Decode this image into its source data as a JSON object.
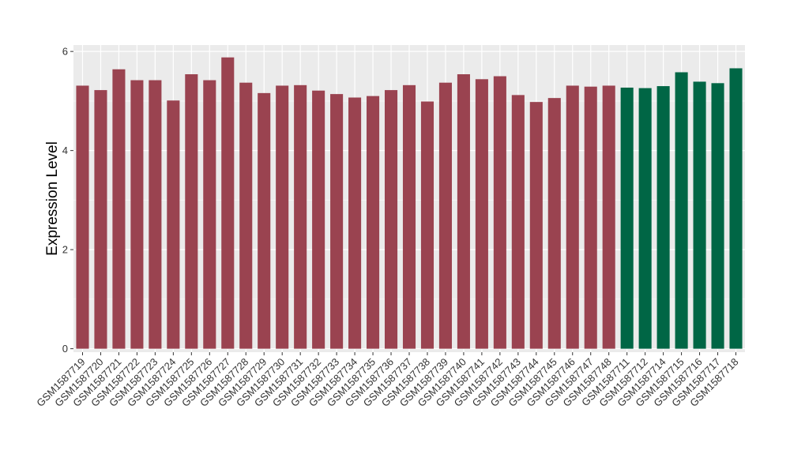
{
  "chart_data": {
    "type": "bar",
    "title": "",
    "xlabel": "",
    "ylabel": "Expression Level",
    "ylim": [
      -0.07,
      6.13
    ],
    "yticks": [
      0,
      2,
      4,
      6
    ],
    "grid": true,
    "legend": "none",
    "colors": {
      "group_a": "#9a4350",
      "group_b": "#006645",
      "panel_bg": "#ebebeb",
      "grid_major": "#ffffff"
    },
    "categories": [
      "GSM1587719",
      "GSM1587720",
      "GSM1587721",
      "GSM1587722",
      "GSM1587723",
      "GSM1587724",
      "GSM1587725",
      "GSM1587726",
      "GSM1587727",
      "GSM1587728",
      "GSM1587729",
      "GSM1587730",
      "GSM1587731",
      "GSM1587732",
      "GSM1587733",
      "GSM1587734",
      "GSM1587735",
      "GSM1587736",
      "GSM1587737",
      "GSM1587738",
      "GSM1587739",
      "GSM1587740",
      "GSM1587741",
      "GSM1587742",
      "GSM1587743",
      "GSM1587744",
      "GSM1587745",
      "GSM1587746",
      "GSM1587747",
      "GSM1587748",
      "GSM1587711",
      "GSM1587712",
      "GSM1587714",
      "GSM1587715",
      "GSM1587716",
      "GSM1587717",
      "GSM1587718"
    ],
    "values": [
      5.31,
      5.22,
      5.64,
      5.42,
      5.42,
      5.01,
      5.54,
      5.42,
      5.88,
      5.37,
      5.16,
      5.31,
      5.32,
      5.21,
      5.14,
      5.07,
      5.1,
      5.22,
      5.32,
      4.99,
      5.37,
      5.54,
      5.44,
      5.5,
      5.12,
      4.98,
      5.06,
      5.31,
      5.29,
      5.31,
      5.27,
      5.26,
      5.3,
      5.58,
      5.39,
      5.36,
      5.66
    ],
    "groups": [
      "a",
      "a",
      "a",
      "a",
      "a",
      "a",
      "a",
      "a",
      "a",
      "a",
      "a",
      "a",
      "a",
      "a",
      "a",
      "a",
      "a",
      "a",
      "a",
      "a",
      "a",
      "a",
      "a",
      "a",
      "a",
      "a",
      "a",
      "a",
      "a",
      "a",
      "b",
      "b",
      "b",
      "b",
      "b",
      "b",
      "b"
    ]
  }
}
